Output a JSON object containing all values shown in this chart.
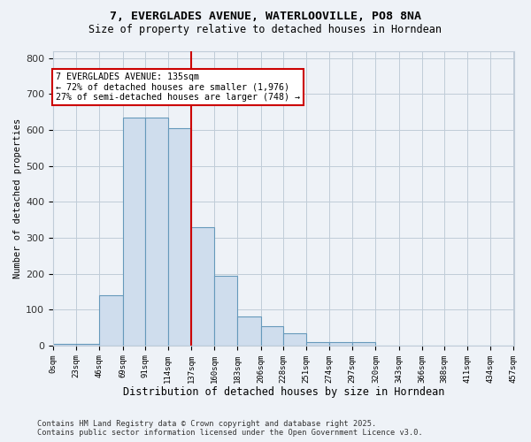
{
  "title_line1": "7, EVERGLADES AVENUE, WATERLOOVILLE, PO8 8NA",
  "title_line2": "Size of property relative to detached houses in Horndean",
  "xlabel": "Distribution of detached houses by size in Horndean",
  "ylabel": "Number of detached properties",
  "bar_edges": [
    0,
    23,
    46,
    69,
    91,
    114,
    137,
    160,
    183,
    206,
    228,
    251,
    274,
    297,
    320,
    343,
    366,
    388,
    411,
    434,
    457
  ],
  "bar_heights": [
    5,
    5,
    140,
    635,
    635,
    605,
    330,
    195,
    80,
    55,
    35,
    10,
    10,
    10,
    0,
    0,
    0,
    0,
    0,
    0
  ],
  "bar_color": "#cfdded",
  "bar_edge_color": "#6699bb",
  "vline_x": 137,
  "vline_color": "#cc0000",
  "annotation_text": "7 EVERGLADES AVENUE: 135sqm\n← 72% of detached houses are smaller (1,976)\n27% of semi-detached houses are larger (748) →",
  "annotation_box_facecolor": "white",
  "annotation_box_edgecolor": "#cc0000",
  "tick_labels": [
    "0sqm",
    "23sqm",
    "46sqm",
    "69sqm",
    "91sqm",
    "114sqm",
    "137sqm",
    "160sqm",
    "183sqm",
    "206sqm",
    "228sqm",
    "251sqm",
    "274sqm",
    "297sqm",
    "320sqm",
    "343sqm",
    "366sqm",
    "388sqm",
    "411sqm",
    "434sqm",
    "457sqm"
  ],
  "ylim": [
    0,
    820
  ],
  "yticks": [
    0,
    100,
    200,
    300,
    400,
    500,
    600,
    700,
    800
  ],
  "footer_line1": "Contains HM Land Registry data © Crown copyright and database right 2025.",
  "footer_line2": "Contains public sector information licensed under the Open Government Licence v3.0.",
  "bg_color": "#eef2f7",
  "plot_bg_color": "#eef2f7",
  "grid_color": "#c0ccd8"
}
